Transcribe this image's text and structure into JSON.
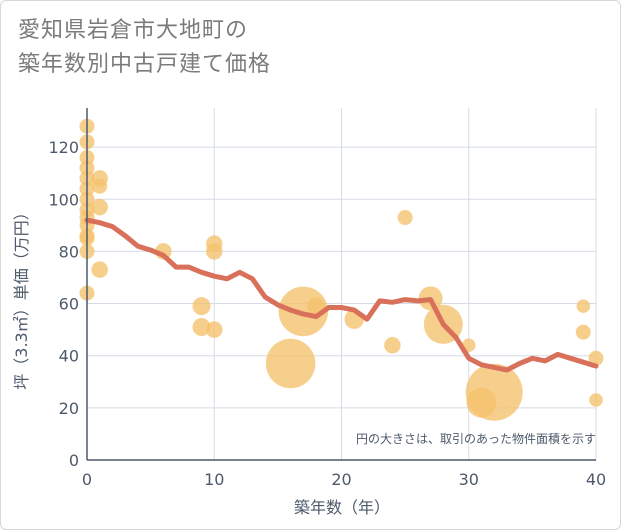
{
  "title": {
    "line1": "愛知県岩倉市大地町の",
    "line2": "築年数別中古戸建て価格"
  },
  "note": "円の大きさは、取引のあった物件面積を示す",
  "colors": {
    "bubble": "#f5c16c",
    "line": "#d9705a",
    "grid": "#d5dce6",
    "plot_bg": "#ffffff"
  },
  "chart_data": {
    "type": "scatter",
    "xlabel": "築年数（年）",
    "ylabel": "坪（3.3㎡）単価（万円）",
    "xlim": [
      0,
      40
    ],
    "ylim": [
      0,
      135
    ],
    "xticks": [
      0,
      10,
      20,
      30,
      40
    ],
    "yticks": [
      0,
      20,
      40,
      60,
      80,
      100,
      120
    ],
    "grid": true,
    "bubbles": [
      {
        "x": 0,
        "y": 128,
        "size": 1
      },
      {
        "x": 0,
        "y": 122,
        "size": 1
      },
      {
        "x": 0,
        "y": 116,
        "size": 1
      },
      {
        "x": 0,
        "y": 112,
        "size": 1
      },
      {
        "x": 0,
        "y": 108,
        "size": 1
      },
      {
        "x": 0,
        "y": 104,
        "size": 1
      },
      {
        "x": 0,
        "y": 100,
        "size": 1
      },
      {
        "x": 0,
        "y": 96,
        "size": 1
      },
      {
        "x": 0,
        "y": 93,
        "size": 1
      },
      {
        "x": 0,
        "y": 90,
        "size": 1
      },
      {
        "x": 0,
        "y": 86,
        "size": 1
      },
      {
        "x": 0,
        "y": 85,
        "size": 1
      },
      {
        "x": 0,
        "y": 80,
        "size": 1
      },
      {
        "x": 0,
        "y": 64,
        "size": 1
      },
      {
        "x": 1,
        "y": 108,
        "size": 1.1
      },
      {
        "x": 1,
        "y": 105,
        "size": 1
      },
      {
        "x": 1,
        "y": 97,
        "size": 1.1
      },
      {
        "x": 1,
        "y": 73,
        "size": 1.1
      },
      {
        "x": 6,
        "y": 80,
        "size": 1.1
      },
      {
        "x": 9,
        "y": 59,
        "size": 1.2
      },
      {
        "x": 9,
        "y": 51,
        "size": 1.2
      },
      {
        "x": 10,
        "y": 83,
        "size": 1.1
      },
      {
        "x": 10,
        "y": 80,
        "size": 1.1
      },
      {
        "x": 10,
        "y": 50,
        "size": 1.1
      },
      {
        "x": 16,
        "y": 37,
        "size": 3.3
      },
      {
        "x": 17,
        "y": 57,
        "size": 3.3
      },
      {
        "x": 18,
        "y": 59,
        "size": 1.2
      },
      {
        "x": 21,
        "y": 54,
        "size": 1.3
      },
      {
        "x": 24,
        "y": 44,
        "size": 1.1
      },
      {
        "x": 25,
        "y": 93,
        "size": 1
      },
      {
        "x": 27,
        "y": 62,
        "size": 1.6
      },
      {
        "x": 28,
        "y": 52,
        "size": 2.6
      },
      {
        "x": 30,
        "y": 44,
        "size": 0.9
      },
      {
        "x": 31,
        "y": 22,
        "size": 2
      },
      {
        "x": 32,
        "y": 26,
        "size": 3.8
      },
      {
        "x": 39,
        "y": 59,
        "size": 0.9
      },
      {
        "x": 39,
        "y": 49,
        "size": 1
      },
      {
        "x": 40,
        "y": 39,
        "size": 1
      },
      {
        "x": 40,
        "y": 23,
        "size": 0.9
      }
    ],
    "trend": {
      "x": [
        0,
        1,
        2,
        3,
        4,
        5,
        6,
        7,
        8,
        9,
        10,
        11,
        12,
        13,
        14,
        15,
        16,
        17,
        18,
        19,
        20,
        21,
        22,
        23,
        24,
        25,
        26,
        27,
        28,
        29,
        30,
        31,
        32,
        33,
        34,
        35,
        36,
        37,
        38,
        39,
        40
      ],
      "y": [
        92,
        91,
        89.5,
        86,
        82,
        80.5,
        78.5,
        74,
        74,
        72,
        70.5,
        69.5,
        72,
        69.5,
        62.5,
        59.5,
        57.5,
        56,
        55,
        58.5,
        58.5,
        57.5,
        54,
        61,
        60.5,
        61.5,
        61,
        61.5,
        52,
        47,
        39,
        36.5,
        35.5,
        34.5,
        37,
        39,
        38,
        40.5,
        39,
        37.5,
        36
      ]
    }
  }
}
